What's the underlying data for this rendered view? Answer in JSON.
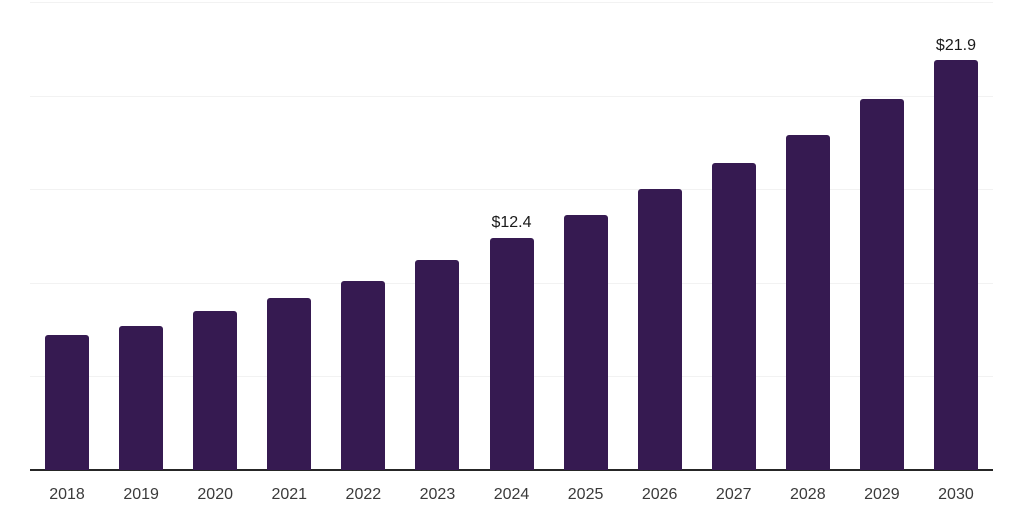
{
  "chart_data": {
    "type": "bar",
    "title": "",
    "xlabel": "",
    "ylabel": "",
    "categories": [
      "2018",
      "2019",
      "2020",
      "2021",
      "2022",
      "2023",
      "2024",
      "2025",
      "2026",
      "2027",
      "2028",
      "2029",
      "2030"
    ],
    "values": [
      7.2,
      7.7,
      8.5,
      9.2,
      10.1,
      11.2,
      12.4,
      13.6,
      15.0,
      16.4,
      17.9,
      19.8,
      21.9
    ],
    "point_labels": [
      null,
      null,
      null,
      null,
      null,
      null,
      "$12.4",
      null,
      null,
      null,
      null,
      null,
      "$21.9"
    ],
    "ylim": [
      0,
      25
    ],
    "gridline_values": [
      5,
      10,
      15,
      20,
      25
    ],
    "grid": true,
    "legend": false,
    "y_axis_labels_visible": false,
    "colors": {
      "bar": "#361a51",
      "grid": "#f2f2f2",
      "axis": "#262626",
      "tick_label": "#3a3a3a",
      "value_label": "#1a1a1a",
      "background": "#ffffff"
    }
  }
}
